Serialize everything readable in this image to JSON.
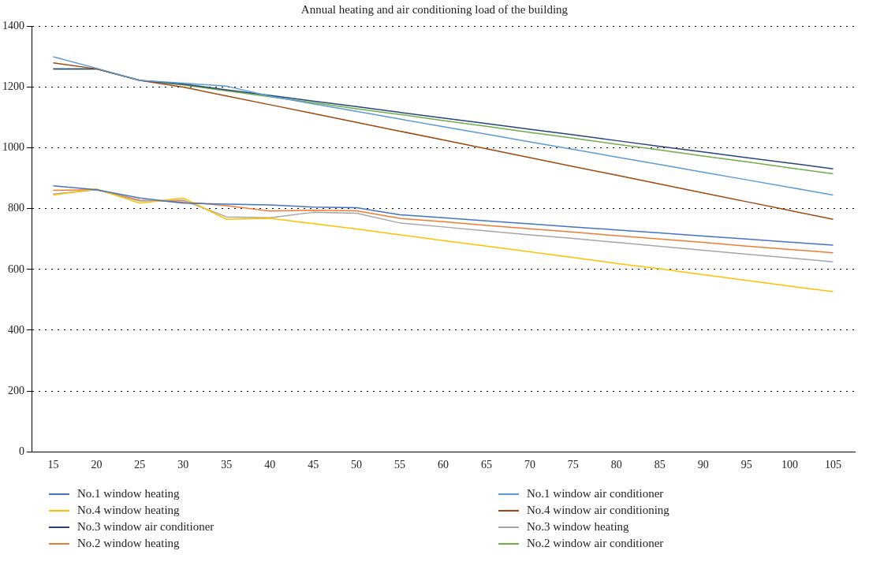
{
  "chart_data": {
    "type": "line",
    "title": "Annual heating and air conditioning load of the building",
    "categories": [
      "15",
      "20",
      "25",
      "30",
      "35",
      "40",
      "45",
      "50",
      "55",
      "60",
      "65",
      "70",
      "75",
      "80",
      "85",
      "90",
      "95",
      "100",
      "105"
    ],
    "ylim": [
      0,
      1400
    ],
    "yticks": [
      0,
      200,
      400,
      600,
      800,
      1000,
      1200,
      1400
    ],
    "grid": "y",
    "legend": "bottom",
    "marker": "none",
    "line_style": "solid",
    "series": [
      {
        "name": "No.1 window heating",
        "color": "#4472c4",
        "values": [
          875,
          862,
          835,
          818,
          815,
          812,
          805,
          803,
          780,
          770,
          760,
          750,
          740,
          730,
          720,
          710,
          700,
          690,
          680
        ]
      },
      {
        "name": "No.1 window air conditioner",
        "color": "#5b9bd5",
        "values": [
          1300,
          1262,
          1222,
          1213,
          1203,
          1170,
          1145,
          1120,
          1095,
          1070,
          1045,
          1020,
          995,
          970,
          945,
          920,
          895,
          870,
          845
        ]
      },
      {
        "name": "No.4 window heating",
        "color": "#ffc000",
        "values": [
          845,
          865,
          818,
          835,
          765,
          768,
          751,
          733,
          714,
          695,
          677,
          658,
          639,
          620,
          602,
          583,
          564,
          545,
          527
        ]
      },
      {
        "name": "No.4 window air conditioning",
        "color": "#9e480e",
        "values": [
          1280,
          1260,
          1222,
          1200,
          1171,
          1142,
          1113,
          1084,
          1055,
          1026,
          997,
          968,
          939,
          910,
          881,
          852,
          823,
          794,
          765
        ]
      },
      {
        "name": "No.3 window air conditioner",
        "color": "#264478",
        "values": [
          1260,
          1260,
          1222,
          1210,
          1191,
          1173,
          1154,
          1136,
          1117,
          1098,
          1080,
          1061,
          1043,
          1024,
          1005,
          987,
          968,
          950,
          931
        ]
      },
      {
        "name": "No.3 window heating",
        "color": "#a5a5a5",
        "values": [
          848,
          862,
          825,
          828,
          773,
          770,
          788,
          785,
          753,
          740,
          727,
          714,
          702,
          689,
          676,
          663,
          650,
          638,
          625
        ]
      },
      {
        "name": "No.2 window heating",
        "color": "#ed7d31",
        "values": [
          860,
          862,
          828,
          822,
          810,
          792,
          795,
          793,
          768,
          757,
          745,
          734,
          723,
          711,
          700,
          689,
          677,
          666,
          655
        ]
      },
      {
        "name": "No.2 window air conditioner",
        "color": "#70ad47",
        "values": [
          1260,
          1260,
          1222,
          1207,
          1188,
          1168,
          1149,
          1129,
          1110,
          1090,
          1071,
          1051,
          1032,
          1012,
          993,
          973,
          954,
          934,
          915
        ]
      }
    ]
  }
}
